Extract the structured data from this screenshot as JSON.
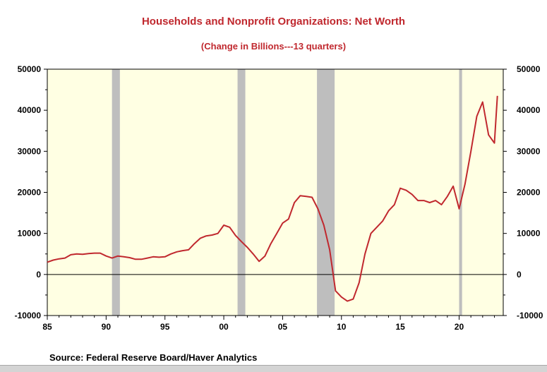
{
  "chart_data": {
    "type": "line",
    "title": "Households and Nonprofit Organizations: Net Worth",
    "subtitle": "(Change in Billions---13 quarters)",
    "source": "Source:  Federal Reserve Board/Haver Analytics",
    "x_tick_labels": [
      "85",
      "90",
      "95",
      "00",
      "05",
      "10",
      "15",
      "20"
    ],
    "y_tick_labels": [
      "50000",
      "40000",
      "30000",
      "20000",
      "10000",
      "0",
      "-10000"
    ],
    "xlim": [
      1985,
      2023.75
    ],
    "ylim": [
      -10000,
      50000
    ],
    "grid": false,
    "recessions": [
      [
        1990.5,
        1991.17
      ],
      [
        2001.17,
        2001.83
      ],
      [
        2007.92,
        2009.42
      ],
      [
        2020.0,
        2020.25
      ]
    ],
    "colors": {
      "line": "#c0282e",
      "plot_bg": "#ffffe3",
      "recession": "#bebebe",
      "title": "#c0282e"
    },
    "series": [
      {
        "x": [
          1985.0,
          1985.5,
          1986.0,
          1986.5,
          1987.0,
          1987.5,
          1988.0,
          1988.5,
          1989.0,
          1989.5,
          1990.0,
          1990.5,
          1991.0,
          1991.5,
          1992.0,
          1992.5,
          1993.0,
          1993.5,
          1994.0,
          1994.5,
          1995.0,
          1995.5,
          1996.0,
          1996.5,
          1997.0,
          1997.5,
          1998.0,
          1998.5,
          1999.0,
          1999.5,
          2000.0,
          2000.5,
          2001.0,
          2001.5,
          2002.0,
          2002.5,
          2003.0,
          2003.5,
          2004.0,
          2004.5,
          2005.0,
          2005.5,
          2006.0,
          2006.5,
          2007.0,
          2007.5,
          2008.0,
          2008.5,
          2009.0,
          2009.5,
          2010.0,
          2010.5,
          2011.0,
          2011.5,
          2012.0,
          2012.5,
          2013.0,
          2013.5,
          2014.0,
          2014.5,
          2015.0,
          2015.5,
          2016.0,
          2016.5,
          2017.0,
          2017.5,
          2018.0,
          2018.5,
          2019.0,
          2019.5,
          2020.0,
          2020.5,
          2021.0,
          2021.5,
          2022.0,
          2022.5,
          2023.0,
          2023.25
        ],
        "values": [
          3000,
          3500,
          3800,
          4000,
          4800,
          5000,
          4900,
          5100,
          5200,
          5200,
          4500,
          4000,
          4500,
          4300,
          4100,
          3700,
          3700,
          4000,
          4300,
          4200,
          4300,
          5000,
          5500,
          5800,
          6000,
          7500,
          8800,
          9400,
          9600,
          10000,
          12000,
          11500,
          9500,
          8000,
          6600,
          5000,
          3200,
          4500,
          7500,
          10000,
          12500,
          13500,
          17500,
          19200,
          19000,
          18800,
          16000,
          12000,
          6000,
          -4000,
          -5500,
          -6500,
          -6000,
          -2000,
          5000,
          10000,
          11500,
          13000,
          15500,
          17000,
          21000,
          20500,
          19500,
          18000,
          18000,
          17500,
          18000,
          17000,
          19000,
          21500,
          16000,
          22000,
          30000,
          38500,
          42000,
          34000,
          32000,
          43500
        ]
      }
    ]
  }
}
